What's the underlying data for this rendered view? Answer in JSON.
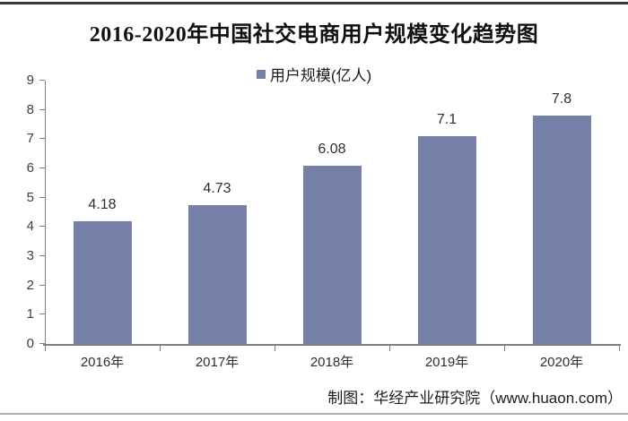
{
  "title": "2016-2020年中国社交电商用户规模变化趋势图",
  "legend": {
    "label": "用户规模(亿人)"
  },
  "footer": "制图：华经产业研究院（www.huaon.com）",
  "colors": {
    "bar": "#7581a9",
    "legend_marker": "#7581a9",
    "axis": "#808080",
    "top_rule": "#3a3a3a",
    "bottom_rule": "#a9b0bc"
  },
  "chart_data": {
    "type": "bar",
    "title": "2016-2020年中国社交电商用户规模变化趋势图",
    "series_name": "用户规模(亿人)",
    "categories": [
      "2016年",
      "2017年",
      "2018年",
      "2019年",
      "2020年"
    ],
    "values": [
      4.18,
      4.73,
      6.08,
      7.1,
      7.8
    ],
    "value_labels": [
      "4.18",
      "4.73",
      "6.08",
      "7.1",
      "7.8"
    ],
    "xlabel": "",
    "ylabel": "",
    "ylim": [
      0,
      9
    ],
    "ytick_step": 1,
    "ytick_labels": [
      "0",
      "1",
      "2",
      "3",
      "4",
      "5",
      "6",
      "7",
      "8",
      "9"
    ],
    "grid": false,
    "legend_position": "top-center",
    "bar_color": "#7581a9"
  }
}
